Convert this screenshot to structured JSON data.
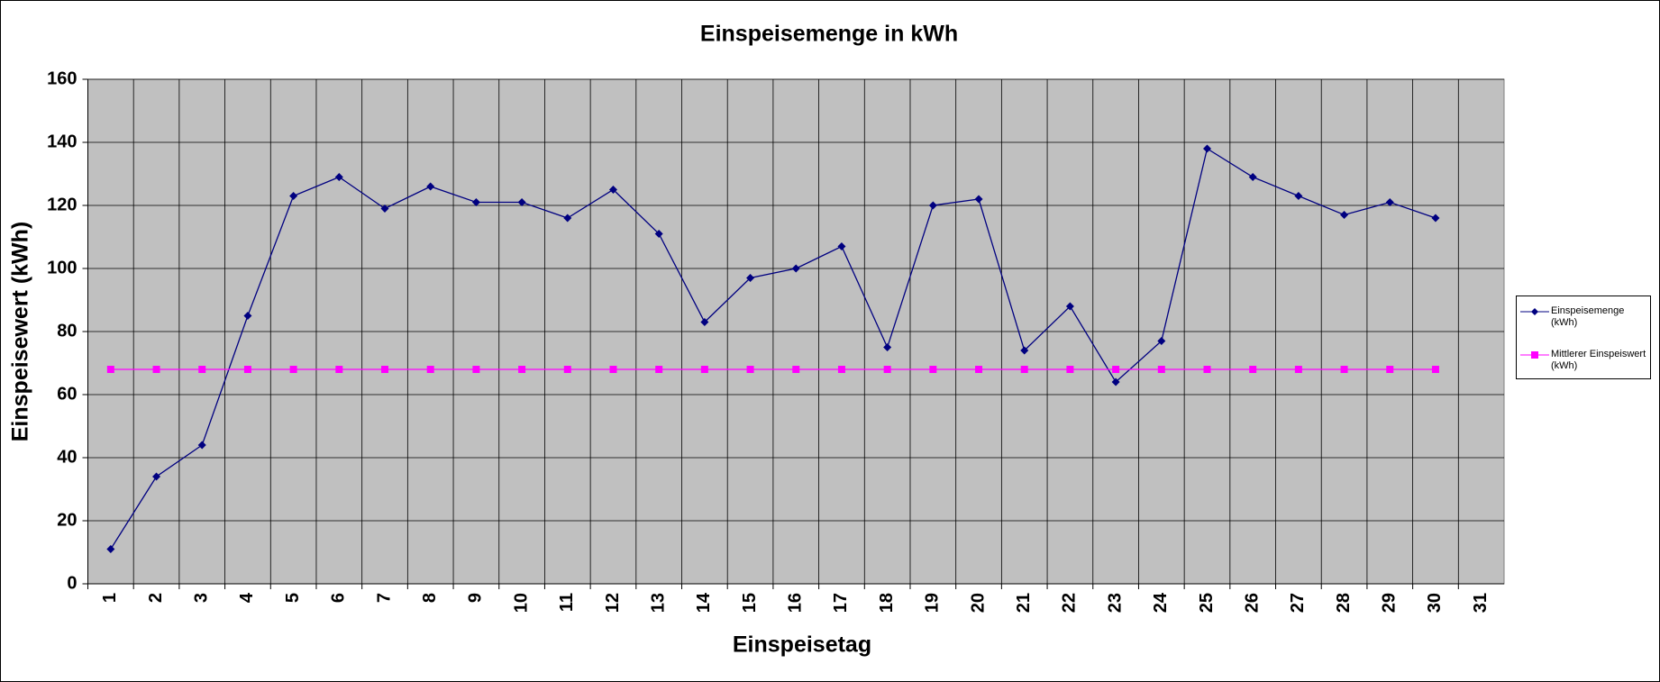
{
  "chart_data": {
    "type": "line",
    "title": "Einspeisemenge in kWh",
    "x_label": "Einspeisetag",
    "y_label": "Einspeisewert  (kWh)",
    "categories": [
      "1",
      "2",
      "3",
      "4",
      "5",
      "6",
      "7",
      "8",
      "9",
      "10",
      "11",
      "12",
      "13",
      "14",
      "15",
      "16",
      "17",
      "18",
      "19",
      "20",
      "21",
      "22",
      "23",
      "24",
      "25",
      "26",
      "27",
      "28",
      "29",
      "30",
      "31"
    ],
    "series": [
      {
        "name": "Einspeisemenge (kWh)",
        "color": "#000080",
        "marker": "diamond",
        "values": [
          11,
          34,
          44,
          85,
          123,
          129,
          119,
          126,
          121,
          121,
          116,
          125,
          111,
          83,
          97,
          100,
          107,
          75,
          120,
          122,
          74,
          88,
          64,
          77,
          138,
          129,
          123,
          117,
          121,
          116,
          null
        ]
      },
      {
        "name": "Mittlerer Einspeiswert (kWh)",
        "color": "#ff00ff",
        "marker": "square",
        "values": [
          68,
          68,
          68,
          68,
          68,
          68,
          68,
          68,
          68,
          68,
          68,
          68,
          68,
          68,
          68,
          68,
          68,
          68,
          68,
          68,
          68,
          68,
          68,
          68,
          68,
          68,
          68,
          68,
          68,
          68,
          null
        ]
      }
    ],
    "ylim": [
      0,
      160
    ],
    "yticks": [
      0,
      20,
      40,
      60,
      80,
      100,
      120,
      140,
      160
    ],
    "grid": true,
    "legend": "right",
    "plot_background": "#c0c0c0"
  }
}
